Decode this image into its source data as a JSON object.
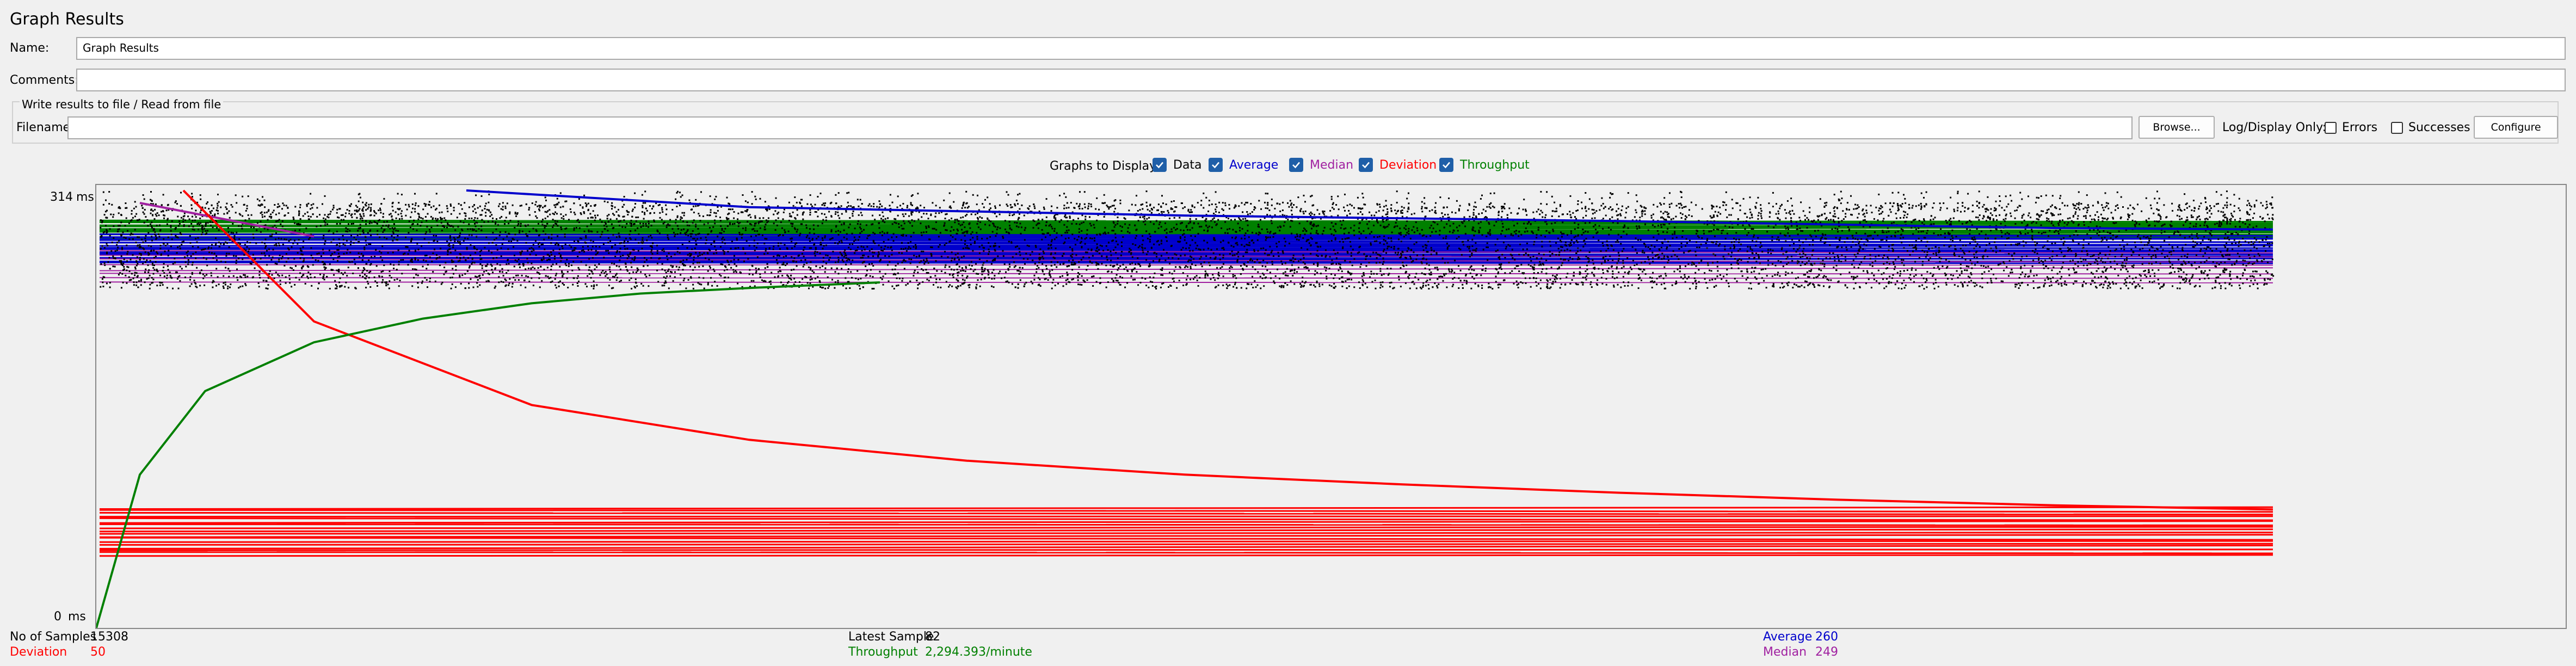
{
  "window": {
    "title": "Graph Results"
  },
  "form": {
    "name_label": "Name:",
    "name_value": "Graph Results",
    "comments_label": "Comments:",
    "comments_value": ""
  },
  "file_group": {
    "title": "Write results to file / Read from file",
    "filename_label": "Filename",
    "filename_value": "",
    "browse_label": "Browse...",
    "log_display_label": "Log/Display Only:",
    "errors_label": "Errors",
    "successes_label": "Successes",
    "configure_label": "Configure"
  },
  "graphs_to_display": {
    "label": "Graphs to Display",
    "options": [
      {
        "label": "Data",
        "checked": true,
        "color": "#000000"
      },
      {
        "label": "Average",
        "checked": true,
        "color": "#0000cc"
      },
      {
        "label": "Median",
        "checked": true,
        "color": "#a020a0"
      },
      {
        "label": "Deviation",
        "checked": true,
        "color": "#ff0000"
      },
      {
        "label": "Throughput",
        "checked": true,
        "color": "#008000"
      }
    ]
  },
  "y_axis": {
    "max_label": "314",
    "min_label": "0",
    "unit": "ms"
  },
  "stats": {
    "samples_label": "No of Samples",
    "samples_value": "15308",
    "deviation_label": "Deviation",
    "deviation_value": "50",
    "latest_label": "Latest Sample",
    "latest_value": "82",
    "throughput_label": "Throughput",
    "throughput_value": "2,294.393/minute",
    "average_label": "Average",
    "average_value": "260",
    "median_label": "Median",
    "median_value": "249"
  },
  "chart_data": {
    "type": "scatter",
    "y_range": [
      0,
      314
    ],
    "y_unit": "ms",
    "sample_count": 15308,
    "series": [
      {
        "name": "Data",
        "color": "#000000",
        "band": [
          244,
          306
        ]
      },
      {
        "name": "Average",
        "color": "#0000cc",
        "trend_x": [
          0.17,
          0.3,
          0.5,
          0.7,
          0.9,
          1.0
        ],
        "trend_y": [
          314,
          302,
          296,
          292,
          287,
          286
        ],
        "band": [
          262,
          282
        ]
      },
      {
        "name": "Median",
        "color": "#a020a0",
        "trend_x": [
          0.02,
          0.05,
          0.1
        ],
        "trend_y": [
          305,
          296,
          281
        ],
        "band": [
          248,
          270
        ]
      },
      {
        "name": "Deviation",
        "color": "#ff0000",
        "trend_x": [
          0.04,
          0.1,
          0.2,
          0.3,
          0.4,
          0.5,
          0.6,
          0.7,
          0.8,
          0.9,
          1.0
        ],
        "trend_y": [
          314,
          220,
          160,
          135,
          120,
          110,
          103,
          97,
          92,
          88,
          85
        ],
        "band": [
          52,
          86
        ]
      },
      {
        "name": "Throughput",
        "color": "#008000",
        "trend_x": [
          0.0,
          0.02,
          0.05,
          0.1,
          0.15,
          0.2,
          0.25,
          0.3,
          0.36
        ],
        "trend_y": [
          0,
          110,
          170,
          205,
          222,
          233,
          240,
          244,
          248
        ],
        "band": [
          280,
          292
        ]
      }
    ]
  }
}
